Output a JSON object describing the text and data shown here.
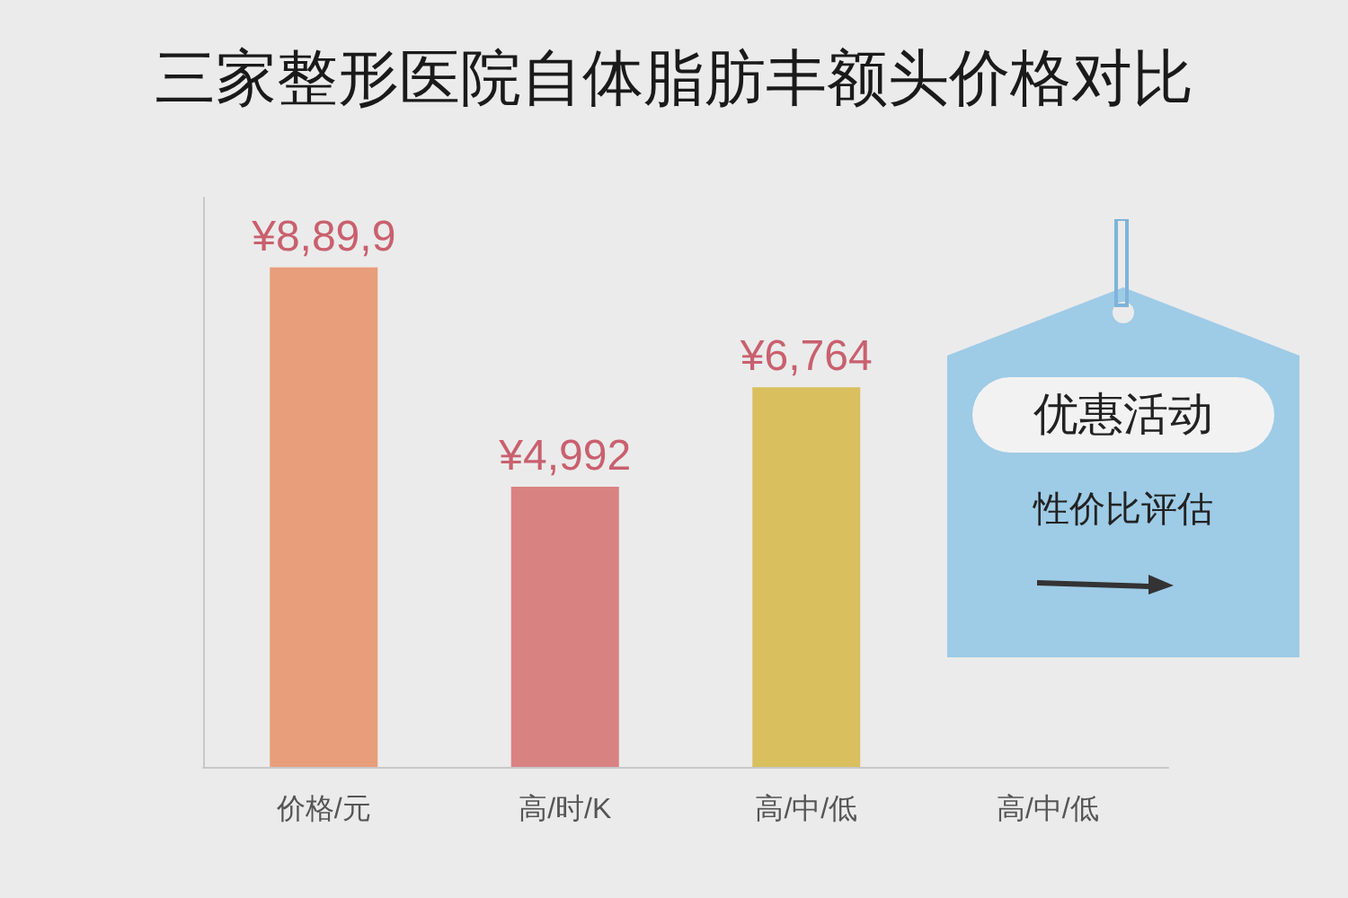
{
  "chart_data": {
    "type": "bar",
    "title": "三家整形医院自体脂肪丰额头价格对比",
    "categories": [
      "价格/元",
      "高/时/K",
      "高/中/低",
      "高/中/低"
    ],
    "tick_labels": "x",
    "values": [
      8899,
      4992,
      6764,
      null
    ],
    "colors": [
      "#e89e7a",
      "#d98282",
      "#d9bf5e",
      "#cccccc"
    ],
    "value_labels": [
      "¥8,89,9",
      "¥4,992",
      "¥6,764",
      null
    ],
    "annotations": [
      "优惠活动",
      "性价比评估"
    ]
  }
}
